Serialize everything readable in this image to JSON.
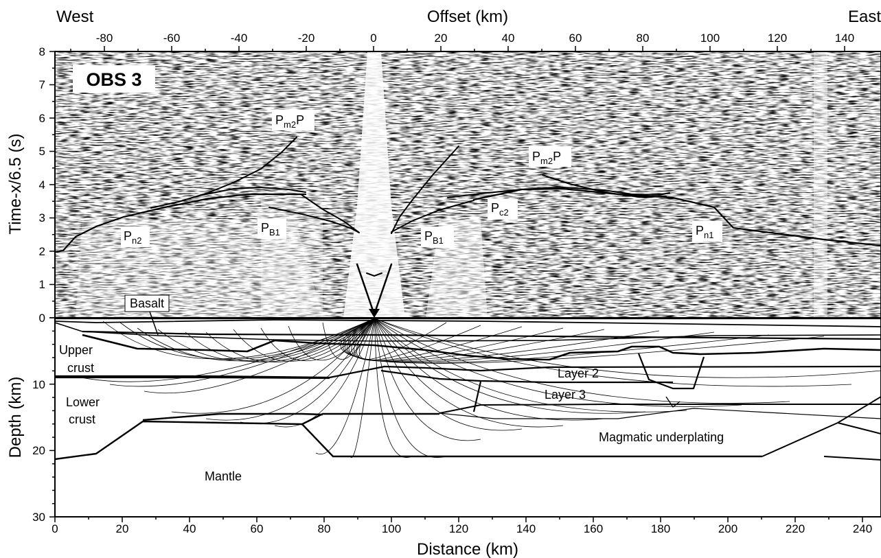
{
  "figure": {
    "station_label": "OBS 3",
    "top_axis": {
      "title": "Offset (km)",
      "ticks": [
        "-80",
        "-60",
        "-40",
        "-20",
        "0",
        "20",
        "40",
        "60",
        "80",
        "100",
        "120",
        "140"
      ],
      "ticks_km": [
        -80,
        -60,
        -40,
        -20,
        0,
        20,
        40,
        60,
        80,
        100,
        120,
        140
      ]
    },
    "direction_left": "West",
    "direction_right": "East",
    "time_axis": {
      "title": "Time-x/6.5 (s)",
      "ticks": [
        "0",
        "1",
        "2",
        "3",
        "4",
        "5",
        "6",
        "7",
        "8"
      ],
      "range": [
        0,
        8
      ]
    },
    "depth_axis": {
      "title": "Depth (km)",
      "ticks": [
        "30",
        "20",
        "10",
        "0"
      ],
      "range": [
        0,
        30
      ]
    },
    "bottom_axis": {
      "title": "Distance (km)",
      "ticks": [
        "0",
        "20",
        "40",
        "60",
        "80",
        "100",
        "120",
        "140",
        "160",
        "180",
        "200",
        "220",
        "240"
      ],
      "range": [
        0,
        245
      ]
    },
    "obs_position_km": 95
  },
  "phases": [
    {
      "main": "P",
      "sub": "m2",
      "tail": "P"
    },
    {
      "main": "P",
      "sub": "m2",
      "tail": "P"
    },
    {
      "main": "P",
      "sub": "c2",
      "tail": ""
    },
    {
      "main": "P",
      "sub": "n2",
      "tail": ""
    },
    {
      "main": "P",
      "sub": "B1",
      "tail": ""
    },
    {
      "main": "P",
      "sub": "B1",
      "tail": ""
    },
    {
      "main": "P",
      "sub": "n1",
      "tail": ""
    }
  ],
  "layers": {
    "basalt": "Basalt",
    "upper_crust_1": "Upper",
    "upper_crust_2": "crust",
    "lower_crust_1": "Lower",
    "lower_crust_2": "crust",
    "layer2": "Layer 2",
    "layer3": "Layer 3",
    "underplating": "Magmatic underplating",
    "mantle": "Mantle"
  }
}
